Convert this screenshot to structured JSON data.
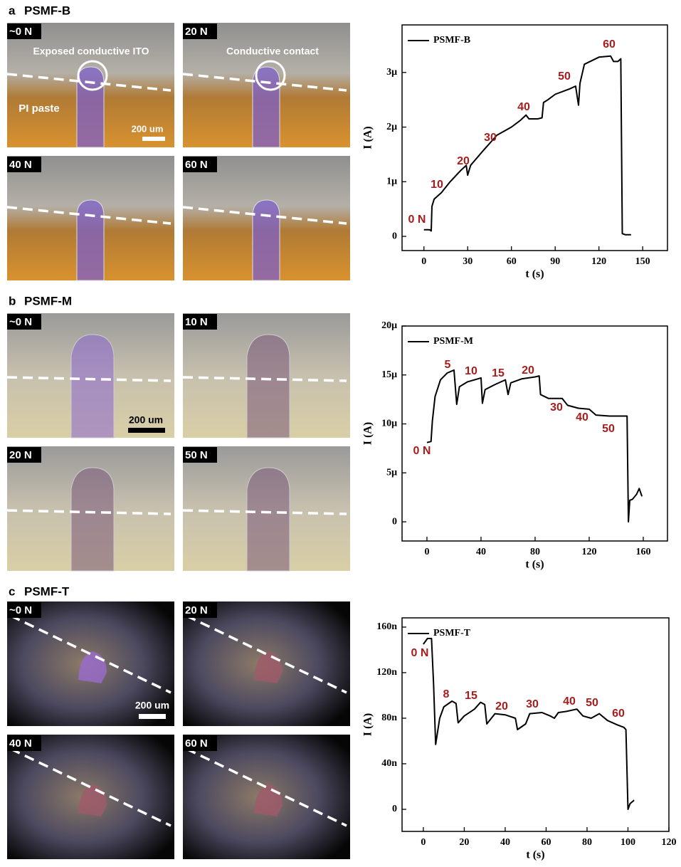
{
  "panels": [
    {
      "letter": "a",
      "name": "PSMF-B",
      "photos": [
        "~0 N",
        "20 N",
        "40 N",
        "60 N"
      ],
      "notes": [
        "Exposed conductive ITO",
        "Conductive contact",
        "PI paste",
        "200 um"
      ]
    },
    {
      "letter": "b",
      "name": "PSMF-M",
      "photos": [
        "~0 N",
        "10 N",
        "20 N",
        "50 N"
      ],
      "notes": [
        "200 um"
      ]
    },
    {
      "letter": "c",
      "name": "PSMF-T",
      "photos": [
        "~0 N",
        "20 N",
        "40 N",
        "60 N"
      ],
      "notes": [
        "200 um"
      ]
    }
  ],
  "chart_data": [
    {
      "type": "line",
      "x_label": "t (s)",
      "y_label": "I (A)",
      "xlim": [
        -15,
        167
      ],
      "xticks": [
        0,
        30,
        60,
        90,
        120,
        150
      ],
      "ylim": [
        -2.6e-07,
        3.87e-06
      ],
      "yticks": [
        0,
        {
          "value": 1e-06,
          "label": "1μ"
        },
        {
          "value": 2e-06,
          "label": "2μ"
        },
        {
          "value": 3e-06,
          "label": "3μ"
        }
      ],
      "annotations": [
        "0 N",
        "10",
        "20",
        "30",
        "40",
        "50",
        "60"
      ],
      "series": [
        {
          "name": "PSMF-B",
          "color": "#000000",
          "x": [
            0,
            4,
            5,
            5.5,
            7,
            12,
            18,
            25,
            29,
            30,
            32,
            40,
            45,
            50,
            60,
            66,
            70,
            72,
            78,
            81,
            82,
            85,
            90,
            100,
            104,
            106,
            107,
            110,
            120,
            128,
            130,
            133,
            135,
            136,
            138,
            142
          ],
          "values": [
            1.2e-07,
            1.2e-07,
            1e-07,
            5.5e-07,
            6.8e-07,
            8e-07,
            1e-06,
            1.2e-06,
            1.3e-06,
            1.12e-06,
            1.3e-06,
            1.55e-06,
            1.7e-06,
            1.85e-06,
            2e-06,
            2.12e-06,
            2.22e-06,
            2.15e-06,
            2.15e-06,
            2.17e-06,
            2.45e-06,
            2.5e-06,
            2.6e-06,
            2.7e-06,
            2.75e-06,
            2.4e-06,
            2.8e-06,
            3.15e-06,
            3.28e-06,
            3.3e-06,
            3.2e-06,
            3.2e-06,
            3.25e-06,
            5e-08,
            3e-08,
            3e-08
          ]
        }
      ]
    },
    {
      "type": "line",
      "x_label": "t (s)",
      "y_label": "I (A)",
      "xlim": [
        -18.4,
        177.9
      ],
      "xticks": [
        0,
        40,
        80,
        120,
        160
      ],
      "ylim": [
        -1.96e-06,
        2e-05
      ],
      "yticks": [
        0,
        {
          "value": 5e-06,
          "label": "5μ"
        },
        {
          "value": 1e-05,
          "label": "10μ"
        },
        {
          "value": 1.5e-05,
          "label": "15μ"
        },
        {
          "value": 2e-05,
          "label": "20μ"
        }
      ],
      "annotations": [
        "0 N",
        "5",
        "10",
        "15",
        "20",
        "30",
        "40",
        "50"
      ],
      "series": [
        {
          "name": "PSMF-M",
          "color": "#000000",
          "x": [
            0,
            3,
            4,
            6,
            10,
            15,
            20,
            22,
            24,
            30,
            40,
            41,
            43,
            50,
            58,
            60,
            62,
            70,
            80,
            83,
            84,
            90,
            100,
            104,
            112,
            120,
            125,
            135,
            148,
            149,
            150,
            152,
            155,
            157,
            159
          ],
          "values": [
            8.1e-06,
            8.2e-06,
            1.03e-05,
            1.28e-05,
            1.45e-05,
            1.52e-05,
            1.55e-05,
            1.2e-05,
            1.38e-05,
            1.43e-05,
            1.47e-05,
            1.21e-05,
            1.35e-05,
            1.4e-05,
            1.45e-05,
            1.3e-05,
            1.42e-05,
            1.46e-05,
            1.48e-05,
            1.49e-05,
            1.3e-05,
            1.26e-05,
            1.26e-05,
            1.19e-05,
            1.16e-05,
            1.15e-05,
            1.09e-05,
            1.08e-05,
            1.08e-05,
            0,
            2.2e-06,
            2.3e-06,
            2.8e-06,
            3.4e-06,
            2.6e-06
          ]
        }
      ]
    },
    {
      "type": "line",
      "x_label": "t (s)",
      "y_label": "I (A)",
      "xlim": [
        -10.4,
        120
      ],
      "xticks": [
        0,
        20,
        40,
        60,
        80,
        100,
        120
      ],
      "ylim": [
        -1.94e-08,
        1.681e-07
      ],
      "yticks": [
        0,
        {
          "value": 4e-08,
          "label": "40n"
        },
        {
          "value": 8e-08,
          "label": "80n"
        },
        {
          "value": 1.2e-07,
          "label": "120n"
        },
        {
          "value": 1.6e-07,
          "label": "160n"
        }
      ],
      "annotations": [
        "0 N",
        "8",
        "15",
        "20",
        "30",
        "40",
        "50",
        "60"
      ],
      "series": [
        {
          "name": "PSMF-T",
          "color": "#000000",
          "x": [
            0,
            2,
            4,
            5,
            6,
            8,
            10,
            14,
            16,
            17,
            20,
            25,
            28,
            30,
            31,
            35,
            40,
            45,
            46,
            50,
            52,
            58,
            62,
            64,
            66,
            70,
            75,
            78,
            82,
            86,
            90,
            95,
            98,
            99,
            100,
            101,
            103
          ],
          "values": [
            1.45e-07,
            1.5e-07,
            1.5e-07,
            1.1e-07,
            5.7e-08,
            8e-08,
            9e-08,
            9.5e-08,
            9.3e-08,
            7.6e-08,
            8.2e-08,
            8.8e-08,
            9.4e-08,
            9.2e-08,
            7.5e-08,
            8.4e-08,
            8.3e-08,
            8e-08,
            7e-08,
            7.5e-08,
            8.4e-08,
            8.5e-08,
            8.2e-08,
            8e-08,
            8.5e-08,
            8.6e-08,
            8.8e-08,
            8.2e-08,
            8e-08,
            8.4e-08,
            7.8e-08,
            7.4e-08,
            7.2e-08,
            7e-08,
            0,
            5e-09,
            8e-09
          ]
        }
      ]
    }
  ]
}
